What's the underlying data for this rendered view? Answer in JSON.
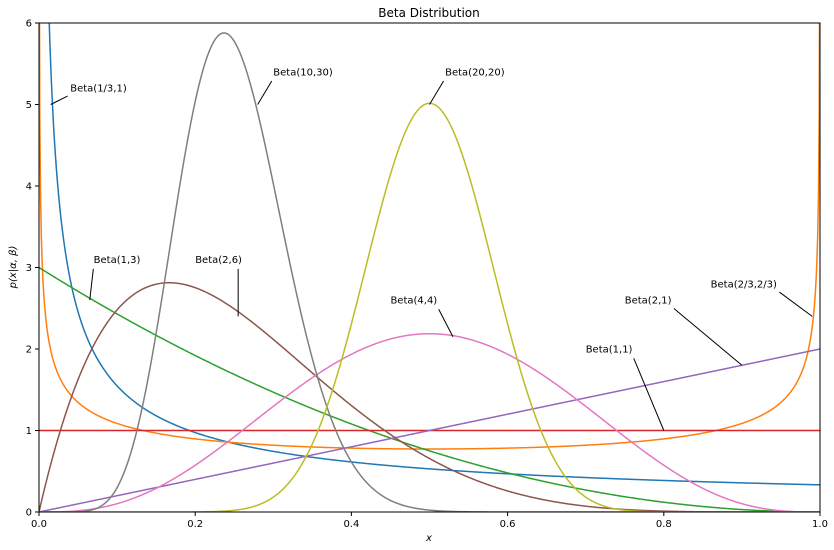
{
  "chart_data": {
    "type": "line",
    "title": "Beta Distribution",
    "xlabel": "x",
    "ylabel": "p(x|α, β)",
    "xlim": [
      0,
      1
    ],
    "ylim": [
      0,
      6
    ],
    "xticks": [
      "0.0",
      "0.2",
      "0.4",
      "0.6",
      "0.8",
      "1.0"
    ],
    "yticks": [
      "0",
      "1",
      "2",
      "3",
      "4",
      "5",
      "6"
    ],
    "grid": false,
    "legend": "none",
    "series": [
      {
        "name": "Beta(1/3,1)",
        "alpha": 0.3333333,
        "beta": 1,
        "color": "#1f77b4"
      },
      {
        "name": "Beta(2/3,2/3)",
        "alpha": 0.6666667,
        "beta": 0.6666667,
        "color": "#ff7f0e"
      },
      {
        "name": "Beta(1,3)",
        "alpha": 1,
        "beta": 3,
        "color": "#2ca02c"
      },
      {
        "name": "Beta(1,1)",
        "alpha": 1,
        "beta": 1,
        "color": "#d62728"
      },
      {
        "name": "Beta(2,1)",
        "alpha": 2,
        "beta": 1,
        "color": "#9467bd"
      },
      {
        "name": "Beta(2,6)",
        "alpha": 2,
        "beta": 6,
        "color": "#8c564b"
      },
      {
        "name": "Beta(4,4)",
        "alpha": 4,
        "beta": 4,
        "color": "#e377c2"
      },
      {
        "name": "Beta(10,30)",
        "alpha": 10,
        "beta": 30,
        "color": "#7f7f7f"
      },
      {
        "name": "Beta(20,20)",
        "alpha": 20,
        "beta": 20,
        "color": "#bcbd22"
      }
    ],
    "annotations": [
      {
        "text": "Beta(1/3,1)",
        "point": [
          0.015,
          5.0
        ],
        "text_at": [
          0.04,
          5.2
        ]
      },
      {
        "text": "Beta(10,30)",
        "point": [
          0.28,
          5.0
        ],
        "text_at": [
          0.3,
          5.4
        ]
      },
      {
        "text": "Beta(20,20)",
        "point": [
          0.5,
          5.0
        ],
        "text_at": [
          0.52,
          5.4
        ]
      },
      {
        "text": "Beta(1,3)",
        "point": [
          0.065,
          2.6
        ],
        "text_at": [
          0.07,
          3.1
        ]
      },
      {
        "text": "Beta(2,6)",
        "point": [
          0.255,
          2.4
        ],
        "text_at": [
          0.2,
          3.1
        ]
      },
      {
        "text": "Beta(4,4)",
        "point": [
          0.53,
          2.15
        ],
        "text_at": [
          0.45,
          2.6
        ]
      },
      {
        "text": "Beta(2,1)",
        "point": [
          0.9,
          1.8
        ],
        "text_at": [
          0.75,
          2.6
        ]
      },
      {
        "text": "Beta(2/3,2/3)",
        "point": [
          0.99,
          2.4
        ],
        "text_at": [
          0.86,
          2.8
        ]
      },
      {
        "text": "Beta(1,1)",
        "point": [
          0.8,
          1.0
        ],
        "text_at": [
          0.7,
          2.0
        ]
      }
    ]
  }
}
